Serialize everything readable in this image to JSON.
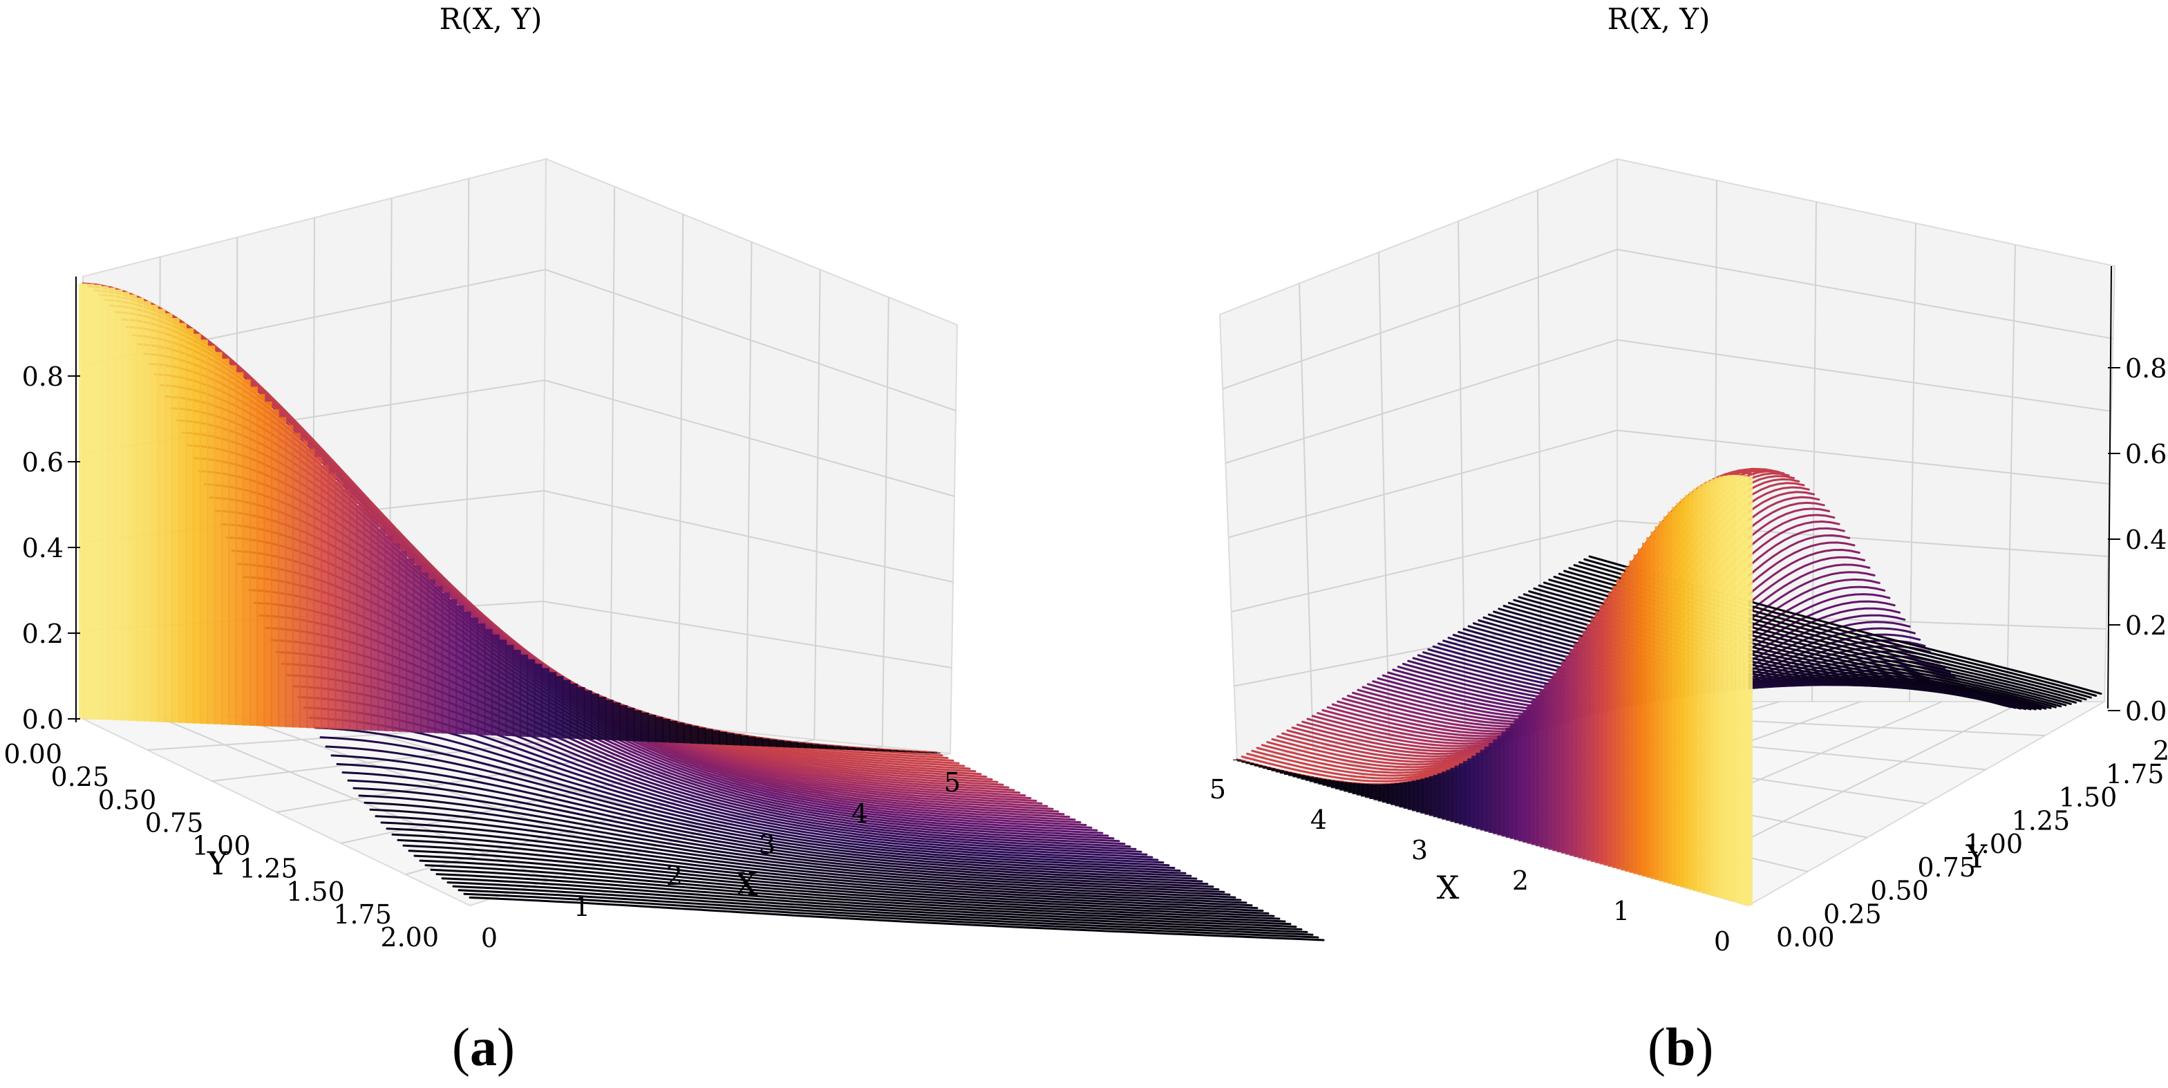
{
  "chart_data": [
    {
      "type": "surface3d",
      "panel_label": "a",
      "title": "R(X, Y)",
      "xlabel": "X",
      "ylabel": "Y",
      "zlabel": "",
      "x_ticks": [
        "0",
        "1",
        "2",
        "3",
        "4",
        "5"
      ],
      "y_ticks": [
        "0.00",
        "0.25",
        "0.50",
        "0.75",
        "1.00",
        "1.25",
        "1.50",
        "1.75",
        "2.00"
      ],
      "z_ticks": [
        "0.0",
        "0.2",
        "0.4",
        "0.6",
        "0.8"
      ],
      "xlim": [
        0,
        5
      ],
      "ylim": [
        0,
        2
      ],
      "zlim": [
        0,
        1
      ],
      "view": {
        "elev": 12,
        "azim": 45
      },
      "colormap": "inferno",
      "surface_formula": "R = exp(-X^2/4) * exp(-Y^2)",
      "sample_values": {
        "x": [
          0,
          1,
          2,
          3,
          4,
          5
        ],
        "R_at_y0": [
          1.0,
          0.78,
          0.37,
          0.11,
          0.02,
          0.0
        ]
      },
      "grid": true
    },
    {
      "type": "surface3d",
      "panel_label": "b",
      "title": "R(X, Y)",
      "xlabel": "X",
      "ylabel": "Y",
      "zlabel": "",
      "x_ticks": [
        "0",
        "1",
        "2",
        "3",
        "4",
        "5"
      ],
      "y_ticks": [
        "0.00",
        "0.25",
        "0.50",
        "0.75",
        "1.00",
        "1.25",
        "1.50",
        "1.75",
        "2.00"
      ],
      "z_ticks": [
        "0.0",
        "0.2",
        "0.4",
        "0.6",
        "0.8"
      ],
      "xlim": [
        0,
        5
      ],
      "ylim": [
        0,
        2
      ],
      "zlim": [
        0,
        1
      ],
      "view": {
        "elev": 12,
        "azim": 225
      },
      "colormap": "inferno",
      "surface_formula": "R = exp(-X^2/4) * exp(-Y^2)",
      "sample_values": {
        "x": [
          0,
          1,
          2,
          3,
          4,
          5
        ],
        "R_at_y0": [
          1.0,
          0.78,
          0.37,
          0.11,
          0.02,
          0.0
        ]
      },
      "grid": true
    }
  ],
  "captions": {
    "a": "a",
    "b": "b"
  }
}
